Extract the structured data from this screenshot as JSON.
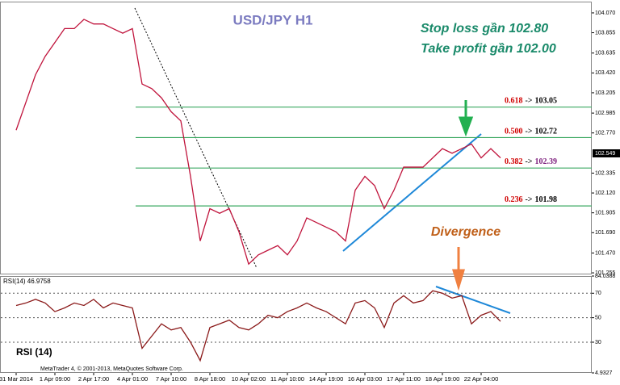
{
  "chart_data": [
    {
      "type": "line",
      "title": "USD/JPY  H1",
      "annotations": [
        "Stop loss gần 102.80",
        "Take profit gần 102.00",
        "Divergence"
      ],
      "color": "#c0143c",
      "values": [
        102.8,
        103.1,
        103.4,
        103.6,
        103.75,
        103.9,
        103.9,
        104.0,
        103.95,
        103.95,
        103.9,
        103.85,
        103.9,
        103.3,
        103.25,
        103.15,
        103.0,
        102.9,
        102.3,
        101.6,
        101.95,
        101.9,
        101.95,
        101.7,
        101.35,
        101.45,
        101.5,
        101.55,
        101.45,
        101.6,
        101.85,
        101.8,
        101.75,
        101.7,
        101.6,
        102.15,
        102.3,
        102.2,
        101.95,
        102.15,
        102.4,
        102.4,
        102.4,
        102.5,
        102.6,
        102.55,
        102.6,
        102.65,
        102.5,
        102.6,
        102.5
      ],
      "ylim": [
        101.238,
        104.192
      ],
      "yticks": [
        {
          "value": 104.07,
          "label": "104.070"
        },
        {
          "value": 103.855,
          "label": "103.855"
        },
        {
          "value": 103.635,
          "label": "103.635"
        },
        {
          "value": 103.42,
          "label": "103.420"
        },
        {
          "value": 103.205,
          "label": "103.205"
        },
        {
          "value": 102.985,
          "label": "102.985"
        },
        {
          "value": 102.77,
          "label": "102.770"
        },
        {
          "value": 102.335,
          "label": "102.335"
        },
        {
          "value": 102.12,
          "label": "102.120"
        },
        {
          "value": 101.905,
          "label": "101.905"
        },
        {
          "value": 101.69,
          "label": "101.690"
        },
        {
          "value": 101.47,
          "label": "101.470"
        },
        {
          "value": 101.255,
          "label": "101.255"
        }
      ],
      "current_price": 102.549,
      "fib": {
        "separator": "->",
        "color": "#3aa860",
        "levels": [
          {
            "ratio": "0.618",
            "value": 103.05
          },
          {
            "ratio": "0.500",
            "value": 102.72
          },
          {
            "ratio": "0.382",
            "value": 102.39
          },
          {
            "ratio": "0.236",
            "value": 101.98
          }
        ]
      }
    },
    {
      "type": "line",
      "title": "RSI(14) 46.9758",
      "label": "RSI (14)",
      "credit": "MetaTrader 4, © 2001-2013, MetaQuotes Software Corp.",
      "color": "#8b1a1a",
      "categories": [
        "31 Mar 2014",
        null,
        null,
        null,
        "1 Apr 09:00",
        null,
        null,
        null,
        "2 Apr 17:00",
        null,
        null,
        null,
        "4 Apr 01:00",
        null,
        null,
        null,
        "7 Apr 10:00",
        null,
        null,
        null,
        "8 Apr 18:00",
        null,
        null,
        null,
        "10 Apr 02:00",
        null,
        null,
        null,
        "11 Apr 10:00",
        null,
        null,
        null,
        "14 Apr 19:00",
        null,
        null,
        null,
        "16 Apr 03:00",
        null,
        null,
        null,
        "17 Apr 11:00",
        null,
        null,
        null,
        "18 Apr 19:00",
        null,
        null,
        null,
        "22 Apr 04:00",
        null,
        null
      ],
      "values": [
        60,
        62,
        65,
        62,
        55,
        58,
        62,
        60,
        65,
        58,
        62,
        60,
        58,
        25,
        35,
        45,
        40,
        42,
        30,
        15,
        42,
        45,
        48,
        42,
        40,
        45,
        52,
        50,
        55,
        58,
        62,
        58,
        55,
        50,
        45,
        62,
        64,
        58,
        42,
        62,
        68,
        62,
        64,
        72,
        70,
        66,
        68,
        45,
        52,
        55,
        47
      ],
      "ylim": [
        4.9327,
        84.0388
      ],
      "yticks": [
        4.9327,
        30,
        50,
        70,
        84.0388
      ],
      "grid": [
        30,
        50,
        70
      ]
    }
  ]
}
